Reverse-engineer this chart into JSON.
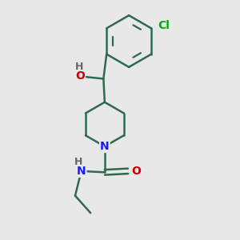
{
  "background_color": "#e8e8e8",
  "line_color": "#1a1a2e",
  "bond_color": "#2d6a4f",
  "bond_width": 1.8,
  "atom_colors": {
    "N": "#1a1aff",
    "O": "#cc0000",
    "Cl": "#00aa00",
    "H_gray": "#666666"
  },
  "font_size_atom": 10,
  "font_size_small": 9
}
